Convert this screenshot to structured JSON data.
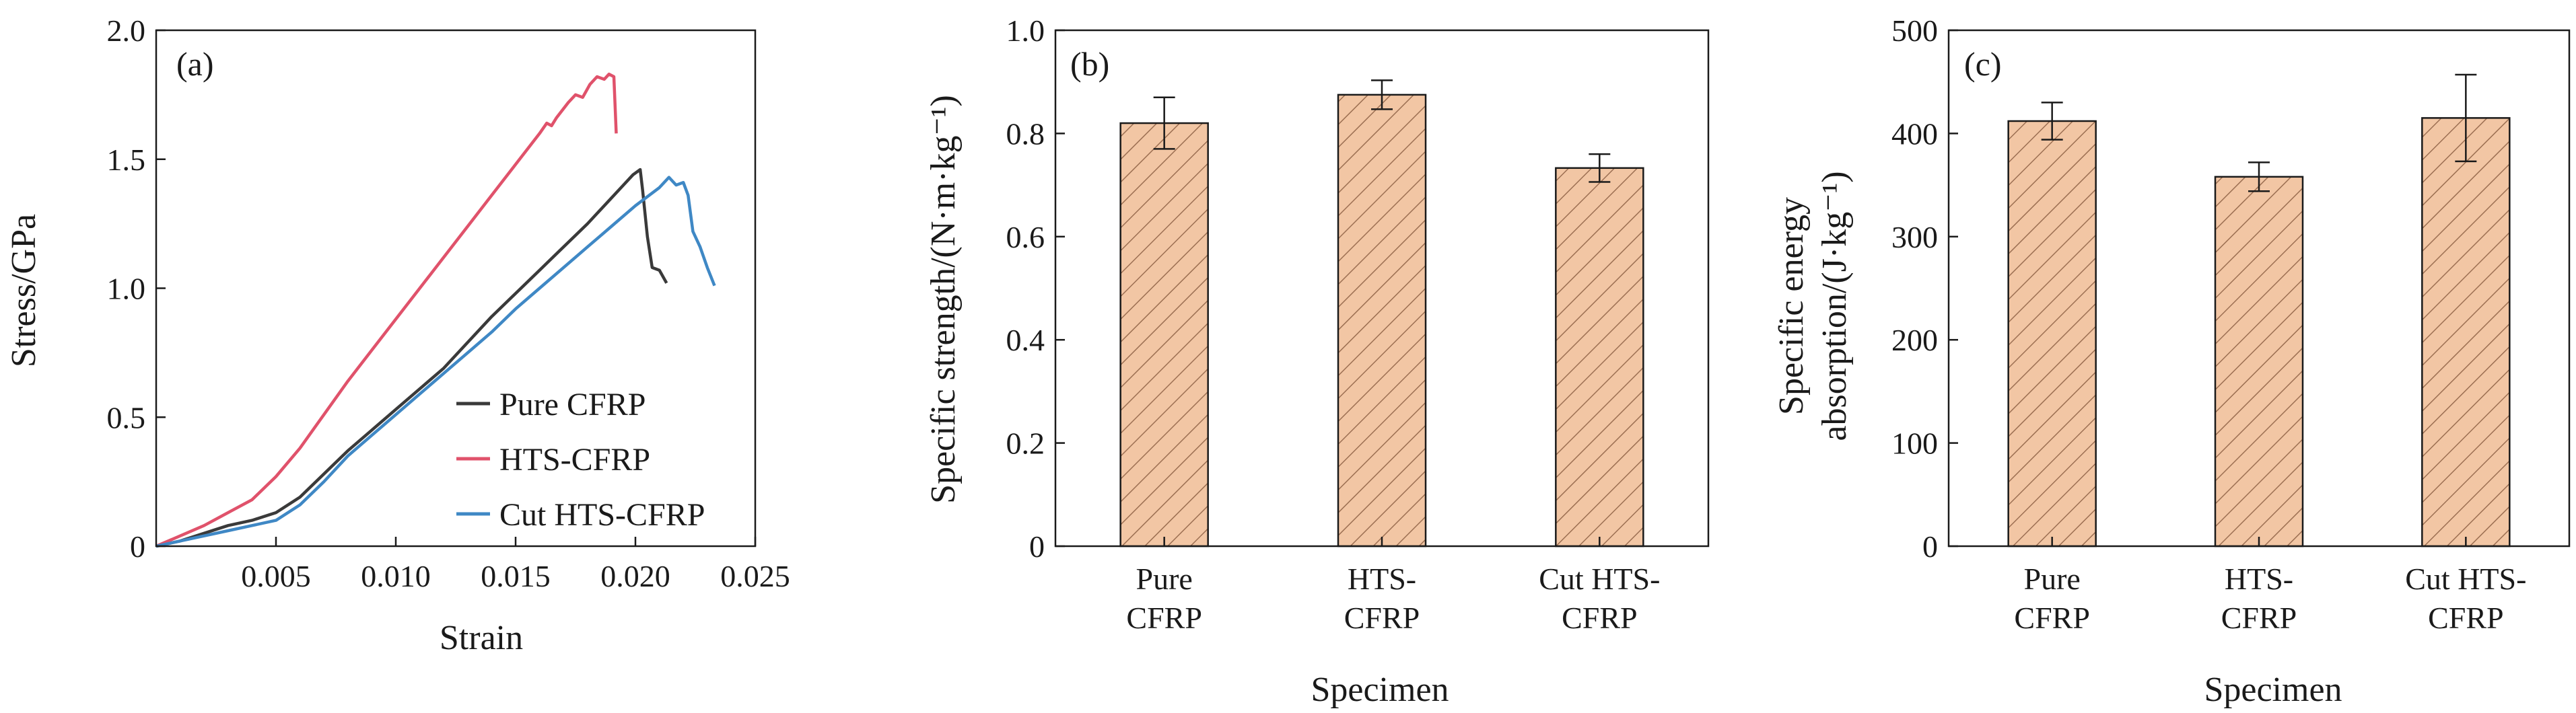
{
  "colors": {
    "pure_cfrp": "#3a3a3a",
    "hts_cfrp": "#e0526b",
    "cut_hts_cfrp": "#3f88c5",
    "bar_fill": "#f2c6a4",
    "bar_hatch": "#9c6f52",
    "axis": "#1a1a1a"
  },
  "chart_data": [
    {
      "panel": "(a)",
      "type": "line",
      "title": "",
      "xlabel": "Strain",
      "ylabel": "Stress/GPa",
      "xlim": [
        0,
        0.025
      ],
      "ylim": [
        0,
        2.0
      ],
      "xticks": [
        0.005,
        0.01,
        0.015,
        0.02,
        0.025
      ],
      "xtick_labels": [
        "0.005",
        "0.010",
        "0.015",
        "0.020",
        "0.025"
      ],
      "yticks": [
        0,
        0.5,
        1.0,
        1.5,
        2.0
      ],
      "ytick_labels": [
        "0",
        "0.5",
        "1.0",
        "1.5",
        "2.0"
      ],
      "legend_position": "bottom-right",
      "series": [
        {
          "name": "Pure CFRP",
          "color_key": "pure_cfrp",
          "points": [
            [
              0.0,
              0.0
            ],
            [
              0.001,
              0.02
            ],
            [
              0.002,
              0.05
            ],
            [
              0.003,
              0.08
            ],
            [
              0.004,
              0.1
            ],
            [
              0.005,
              0.13
            ],
            [
              0.006,
              0.19
            ],
            [
              0.007,
              0.28
            ],
            [
              0.008,
              0.37
            ],
            [
              0.009,
              0.45
            ],
            [
              0.01,
              0.53
            ],
            [
              0.011,
              0.61
            ],
            [
              0.012,
              0.69
            ],
            [
              0.013,
              0.79
            ],
            [
              0.014,
              0.89
            ],
            [
              0.015,
              0.98
            ],
            [
              0.016,
              1.07
            ],
            [
              0.017,
              1.16
            ],
            [
              0.018,
              1.25
            ],
            [
              0.019,
              1.35
            ],
            [
              0.0195,
              1.4
            ],
            [
              0.0199,
              1.44
            ],
            [
              0.0202,
              1.46
            ],
            [
              0.0203,
              1.38
            ],
            [
              0.0205,
              1.2
            ],
            [
              0.0207,
              1.08
            ],
            [
              0.021,
              1.07
            ],
            [
              0.0213,
              1.02
            ]
          ]
        },
        {
          "name": "HTS-CFRP",
          "color_key": "hts_cfrp",
          "points": [
            [
              0.0,
              0.0
            ],
            [
              0.001,
              0.04
            ],
            [
              0.002,
              0.08
            ],
            [
              0.003,
              0.13
            ],
            [
              0.004,
              0.18
            ],
            [
              0.005,
              0.27
            ],
            [
              0.006,
              0.38
            ],
            [
              0.007,
              0.51
            ],
            [
              0.008,
              0.64
            ],
            [
              0.009,
              0.76
            ],
            [
              0.01,
              0.88
            ],
            [
              0.011,
              1.0
            ],
            [
              0.012,
              1.12
            ],
            [
              0.013,
              1.24
            ],
            [
              0.014,
              1.36
            ],
            [
              0.015,
              1.48
            ],
            [
              0.016,
              1.6
            ],
            [
              0.0163,
              1.64
            ],
            [
              0.0165,
              1.63
            ],
            [
              0.0167,
              1.66
            ],
            [
              0.0172,
              1.72
            ],
            [
              0.0175,
              1.75
            ],
            [
              0.0178,
              1.74
            ],
            [
              0.0181,
              1.79
            ],
            [
              0.0184,
              1.82
            ],
            [
              0.0187,
              1.81
            ],
            [
              0.0189,
              1.83
            ],
            [
              0.0191,
              1.82
            ],
            [
              0.0192,
              1.6
            ]
          ]
        },
        {
          "name": "Cut HTS-CFRP",
          "color_key": "cut_hts_cfrp",
          "points": [
            [
              0.0,
              0.0
            ],
            [
              0.001,
              0.02
            ],
            [
              0.002,
              0.04
            ],
            [
              0.003,
              0.06
            ],
            [
              0.004,
              0.08
            ],
            [
              0.005,
              0.1
            ],
            [
              0.006,
              0.16
            ],
            [
              0.007,
              0.25
            ],
            [
              0.008,
              0.35
            ],
            [
              0.009,
              0.43
            ],
            [
              0.01,
              0.51
            ],
            [
              0.011,
              0.59
            ],
            [
              0.012,
              0.67
            ],
            [
              0.013,
              0.75
            ],
            [
              0.014,
              0.83
            ],
            [
              0.015,
              0.92
            ],
            [
              0.016,
              1.0
            ],
            [
              0.017,
              1.08
            ],
            [
              0.018,
              1.16
            ],
            [
              0.019,
              1.24
            ],
            [
              0.02,
              1.32
            ],
            [
              0.021,
              1.39
            ],
            [
              0.0214,
              1.43
            ],
            [
              0.0217,
              1.4
            ],
            [
              0.022,
              1.41
            ],
            [
              0.0222,
              1.36
            ],
            [
              0.0224,
              1.22
            ],
            [
              0.0227,
              1.16
            ],
            [
              0.023,
              1.08
            ],
            [
              0.0233,
              1.01
            ]
          ]
        }
      ]
    },
    {
      "panel": "(b)",
      "type": "bar",
      "title": "",
      "xlabel": "Specimen",
      "ylabel": "Specific strength/(N·m·kg⁻¹)",
      "categories": [
        [
          "Pure",
          "CFRP"
        ],
        [
          "HTS-",
          "CFRP"
        ],
        [
          "Cut HTS-",
          "CFRP"
        ]
      ],
      "values": [
        0.82,
        0.875,
        0.733
      ],
      "errors": [
        0.05,
        0.028,
        0.027
      ],
      "ylim": [
        0,
        1.0
      ],
      "yticks": [
        0,
        0.2,
        0.4,
        0.6,
        0.8,
        1.0
      ],
      "ytick_labels": [
        "0",
        "0.2",
        "0.4",
        "0.6",
        "0.8",
        "1.0"
      ]
    },
    {
      "panel": "(c)",
      "type": "bar",
      "title": "",
      "xlabel": "Specimen",
      "ylabel": [
        "Specific energy",
        "absorption/(J·kg⁻¹)"
      ],
      "categories": [
        [
          "Pure",
          "CFRP"
        ],
        [
          "HTS-",
          "CFRP"
        ],
        [
          "Cut HTS-",
          "CFRP"
        ]
      ],
      "values": [
        412,
        358,
        415
      ],
      "errors": [
        18,
        14,
        42
      ],
      "ylim": [
        0,
        500
      ],
      "yticks": [
        0,
        100,
        200,
        300,
        400,
        500
      ],
      "ytick_labels": [
        "0",
        "100",
        "200",
        "300",
        "400",
        "500"
      ]
    }
  ]
}
